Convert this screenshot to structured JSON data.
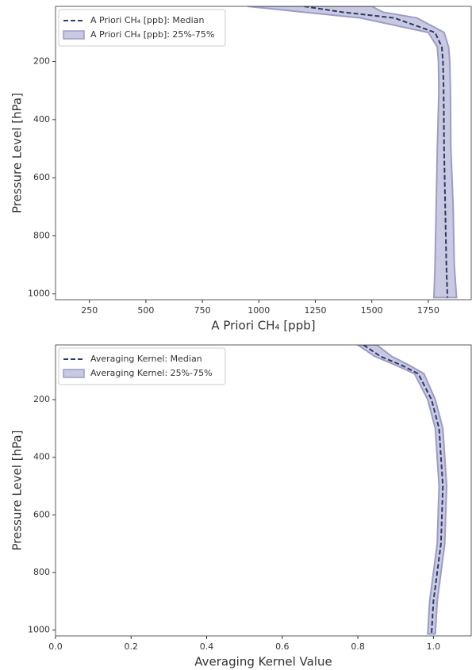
{
  "chart_data": [
    {
      "type": "line",
      "x_label": "A Priori CH₄ [ppb]",
      "y_label": "Pressure Level [hPa]",
      "y": [
        10,
        30,
        50,
        100,
        150,
        200,
        300,
        500,
        700,
        900,
        1013
      ],
      "series": [
        {
          "name": "A Priori CH₄ [ppb]: Median",
          "color": "#2b3a67",
          "values": [
            1200,
            1370,
            1600,
            1780,
            1810,
            1815,
            1818,
            1820,
            1825,
            1830,
            1835
          ]
        }
      ],
      "band": {
        "name": "A Priori CH₄ [ppb]: 25%-75%",
        "color": "#9c9cc9",
        "lower": [
          950,
          1200,
          1450,
          1750,
          1790,
          1795,
          1797,
          1790,
          1785,
          1780,
          1775
        ],
        "upper": [
          1500,
          1550,
          1700,
          1820,
          1840,
          1845,
          1848,
          1850,
          1860,
          1865,
          1875
        ]
      },
      "xlim": [
        100,
        1940
      ],
      "xticks": [
        250,
        500,
        750,
        1000,
        1250,
        1500,
        1750
      ],
      "ylim": [
        1020,
        10
      ],
      "yticks": [
        200,
        400,
        600,
        800,
        1000
      ],
      "legend": "upper left"
    },
    {
      "type": "line",
      "x_label": "Averaging Kernel Value",
      "y_label": "Pressure Level [hPa]",
      "y": [
        10,
        50,
        80,
        110,
        200,
        300,
        500,
        700,
        900,
        1013
      ],
      "series": [
        {
          "name": "Averaging Kernel: Median",
          "color": "#2b3a67",
          "values": [
            0.815,
            0.86,
            0.915,
            0.96,
            0.995,
            1.015,
            1.025,
            1.02,
            1.0,
            0.995
          ]
        }
      ],
      "band": {
        "name": "Averaging Kernel: 25%-75%",
        "color": "#9c9cc9",
        "lower": [
          0.8,
          0.845,
          0.9,
          0.95,
          0.985,
          1.005,
          1.015,
          1.01,
          0.99,
          0.985
        ],
        "upper": [
          0.85,
          0.89,
          0.935,
          0.975,
          1.005,
          1.025,
          1.035,
          1.03,
          1.01,
          1.005
        ]
      },
      "xlim": [
        0,
        1.1
      ],
      "xticks": [
        {
          "value": 0,
          "label": "0.0"
        },
        {
          "value": 0.2,
          "label": "0.2"
        },
        {
          "value": 0.4,
          "label": "0.4"
        },
        {
          "value": 0.6,
          "label": "0.6"
        },
        {
          "value": 0.8,
          "label": "0.8"
        },
        {
          "value": 1,
          "label": "1.0"
        }
      ],
      "ylim": [
        1020,
        10
      ],
      "yticks": [
        200,
        400,
        600,
        800,
        1000
      ],
      "legend": "upper left"
    }
  ]
}
